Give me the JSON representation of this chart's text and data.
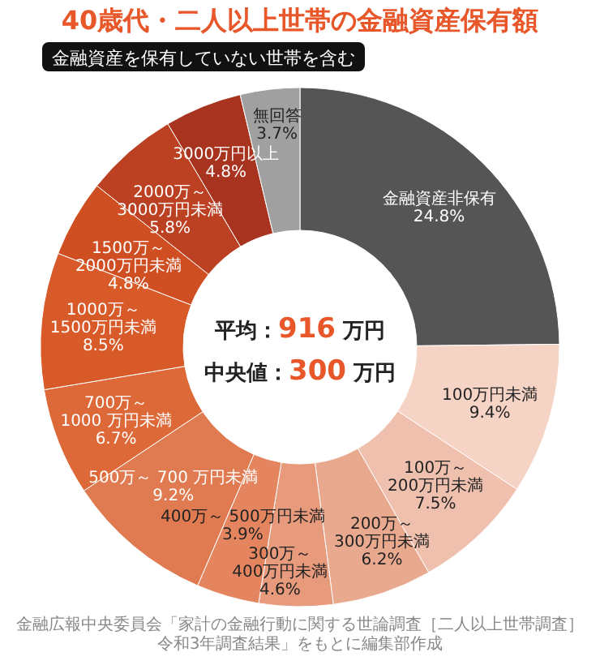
{
  "chart_data": {
    "type": "donut",
    "title": "40歳代・二人以上世帯の金融資産保有額",
    "subtitle": "金融資産を保有していない世帯を含む",
    "categories": [
      "金融資産非保有",
      "100万円未満",
      "100万～\n200万円未満",
      "200万～\n300万円未満",
      "300万～\n400万円未満",
      "400万～ 500万円未満",
      "500万～ 700 万円未満",
      "700万～\n1000 万円未満",
      "1000万～\n1500万円未満",
      "1500万～\n2000万円未満",
      "2000万～\n3000万円未満",
      "3000万円以上",
      "無回答"
    ],
    "values": [
      24.8,
      9.4,
      7.5,
      6.2,
      4.6,
      3.9,
      9.2,
      6.7,
      8.5,
      4.8,
      5.8,
      4.8,
      3.7
    ],
    "value_labels": [
      "24.8%",
      "9.4%",
      "7.5%",
      "6.2%",
      "4.6%",
      "3.9%",
      "9.2%",
      "6.7%",
      "8.5%",
      "4.8%",
      "5.8%",
      "4.8%",
      "3.7%"
    ],
    "colors": [
      "#555555",
      "#f5d3c5",
      "#efc0ad",
      "#e9a98f",
      "#e79a7c",
      "#e4855f",
      "#e07a50",
      "#dd6838",
      "#d85a28",
      "#cf4f22",
      "#bc4022",
      "#a8341f",
      "#a0a0a0"
    ],
    "annotations": [
      "平均：916 万円",
      "中央値：300 万円",
      "金融広報中央委員会「家計の金融行動に関する世論調査［二人以上世帯調査］令和3年調査結果」をもとに編集部作成"
    ]
  }
}
